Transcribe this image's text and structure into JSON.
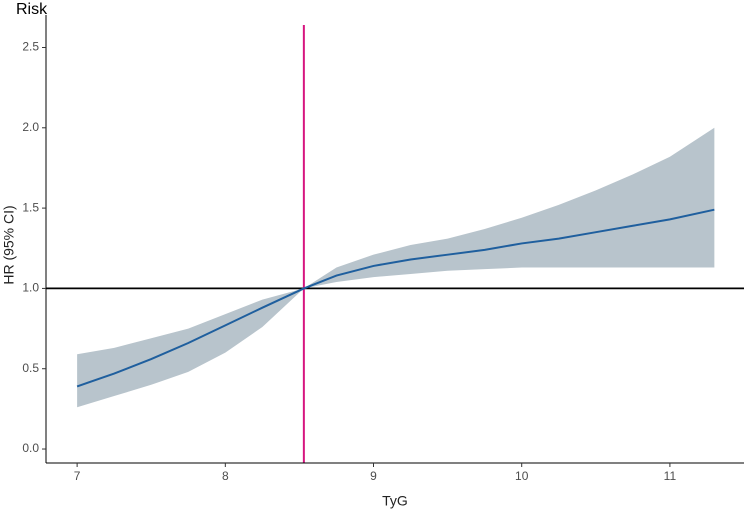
{
  "chart_data": {
    "type": "line",
    "title": "Risk",
    "x_label": "TyG",
    "y_label": "HR (95% CI)",
    "x": [
      7,
      7.25,
      7.5,
      7.75,
      8,
      8.25,
      8.53,
      8.75,
      9,
      9.25,
      9.5,
      9.75,
      10,
      10.25,
      10.5,
      10.75,
      11,
      11.3
    ],
    "series": [
      {
        "color": "#1f5f9e",
        "values": [
          0.39,
          0.47,
          0.56,
          0.66,
          0.77,
          0.88,
          1.0,
          1.08,
          1.14,
          1.18,
          1.21,
          1.24,
          1.28,
          1.31,
          1.35,
          1.39,
          1.43,
          1.49
        ]
      }
    ],
    "band": {
      "color": "#b8c4cc",
      "lower": [
        0.26,
        0.33,
        0.4,
        0.48,
        0.6,
        0.76,
        1.0,
        1.04,
        1.07,
        1.09,
        1.11,
        1.12,
        1.13,
        1.13,
        1.13,
        1.13,
        1.13,
        1.13
      ],
      "upper": [
        0.59,
        0.63,
        0.69,
        0.75,
        0.84,
        0.93,
        1.0,
        1.13,
        1.21,
        1.27,
        1.31,
        1.37,
        1.44,
        1.52,
        1.61,
        1.71,
        1.82,
        2.0
      ]
    },
    "vline": {
      "value": 8.53,
      "color": "#d6157f"
    },
    "hline": {
      "value": 1,
      "color": "#000000"
    },
    "xlim": [
      6.79,
      11.5
    ],
    "ylim": [
      -0.087,
      2.64
    ],
    "xticks": [
      7,
      8,
      9,
      10,
      11
    ],
    "yticks": [
      {
        "value": 0,
        "label": "0.0"
      },
      0.5,
      {
        "value": 1,
        "label": "1.0"
      },
      1.5,
      {
        "value": 2,
        "label": "2.0"
      },
      2.5
    ],
    "grid": false
  }
}
